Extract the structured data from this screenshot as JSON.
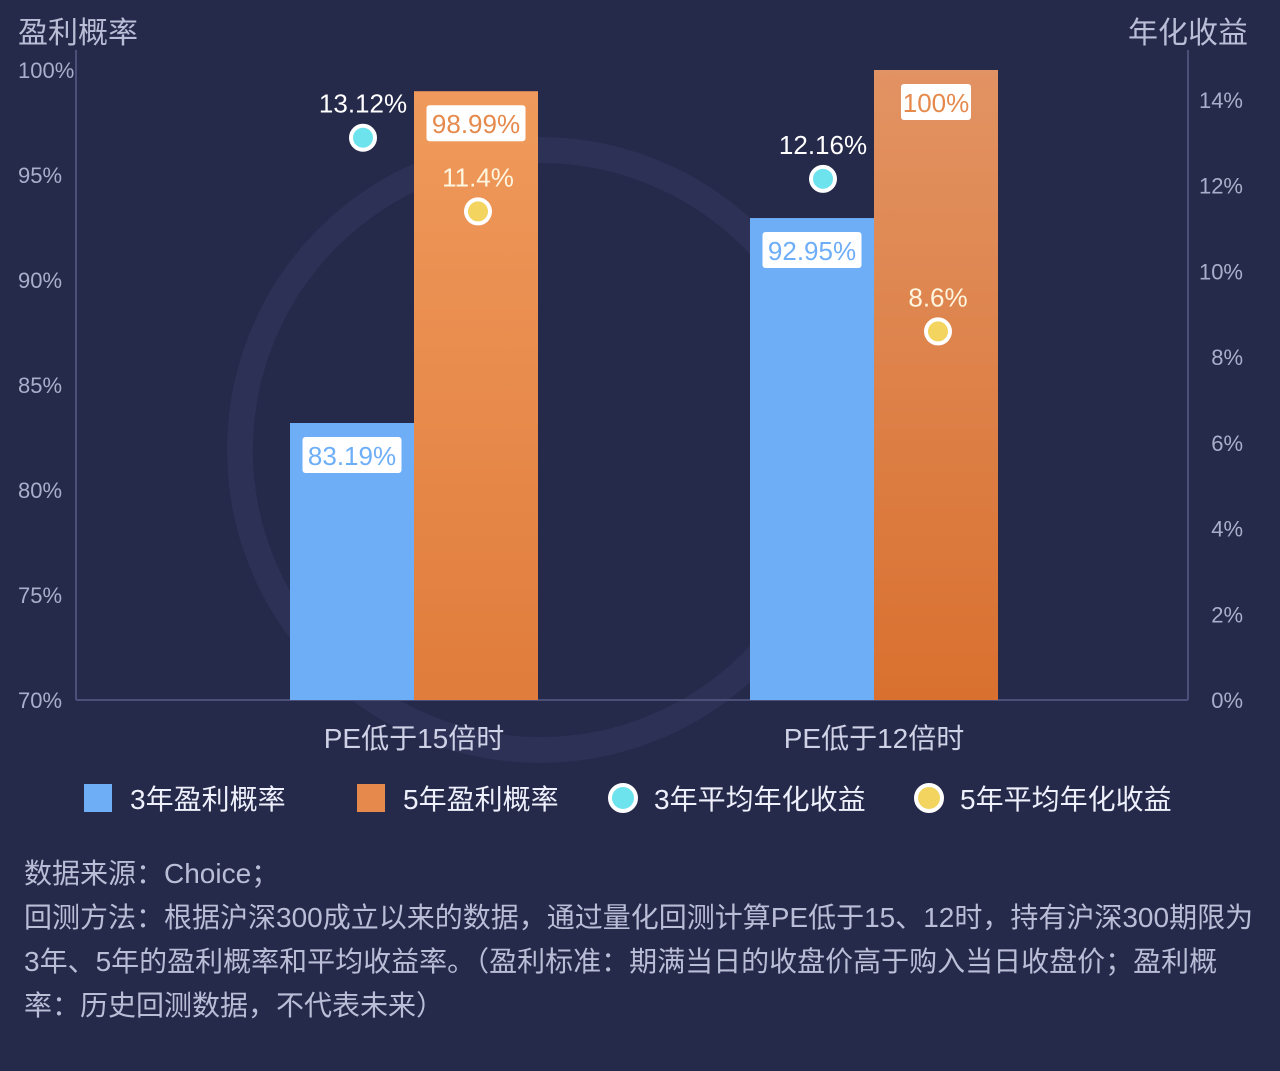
{
  "chart_data": {
    "type": "bar",
    "categories": [
      "PE低于15倍时",
      "PE低于12倍时"
    ],
    "series": [
      {
        "name": "3年盈利概率",
        "kind": "bar",
        "axis": "left",
        "values": [
          83.19,
          92.95
        ],
        "labels": [
          "83.19%",
          "92.95%"
        ],
        "color": "#6eaef7"
      },
      {
        "name": "5年盈利概率",
        "kind": "bar",
        "axis": "left",
        "values": [
          98.99,
          100
        ],
        "labels": [
          "98.99%",
          "100%"
        ],
        "color": "#e58a4c"
      },
      {
        "name": "3年平均年化收益",
        "kind": "point",
        "axis": "right",
        "values": [
          13.12,
          12.16
        ],
        "labels": [
          "13.12%",
          "12.16%"
        ],
        "color": "#6de3ee"
      },
      {
        "name": "5年平均年化收益",
        "kind": "point",
        "axis": "right",
        "values": [
          11.4,
          8.6
        ],
        "labels": [
          "11.4%",
          "8.6%"
        ],
        "color": "#f2d45f"
      }
    ],
    "ylabel": "盈利概率",
    "y2label": "年化收益",
    "ylim": [
      70,
      100
    ],
    "y2lim": [
      0,
      14
    ],
    "yticks": [
      "100%",
      "95%",
      "90%",
      "85%",
      "80%",
      "75%",
      "70%"
    ],
    "y2ticks": [
      "14%",
      "12%",
      "10%",
      "8%",
      "6%",
      "4%",
      "2%",
      "0%"
    ],
    "legend_position": "bottom"
  },
  "legend": [
    {
      "label": "3年盈利概率",
      "shape": "square",
      "color": "#6eaef7"
    },
    {
      "label": "5年盈利概率",
      "shape": "square",
      "color": "#e58a4c"
    },
    {
      "label": "3年平均年化收益",
      "shape": "dot",
      "color": "#6de3ee"
    },
    {
      "label": "5年平均年化收益",
      "shape": "dot",
      "color": "#f2d45f"
    }
  ],
  "footnote": {
    "source": "数据来源：Choice；",
    "method": "回测方法：根据沪深300成立以来的数据，通过量化回测计算PE低于15、12时，持有沪深300期限为3年、5年的盈利概率和平均收益率。（盈利标准：期满当日的收盘价高于购入当日收盘价；盈利概率：历史回测数据，不代表未来）"
  }
}
